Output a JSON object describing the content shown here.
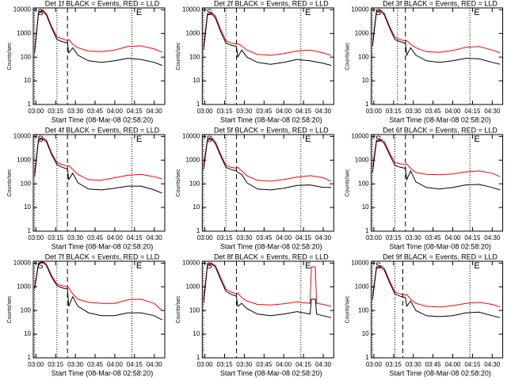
{
  "chart_data": [
    {
      "type": "line",
      "title": "Det 1f BLACK = Events, RED = LLD",
      "xlabel": "Start Time (08-Mar-08 02:58:20)",
      "ylabel": "Counts/sec",
      "log_y": true,
      "xlim": [
        "02:58",
        "04:38"
      ],
      "xticks": [
        "03:00",
        "03:15",
        "03:30",
        "03:45",
        "04:00",
        "04:15",
        "04:30"
      ],
      "ylim": [
        1,
        12000
      ],
      "yticks": [
        1,
        10,
        100,
        1000,
        10000
      ],
      "dotted_lines": [
        "02:59",
        "03:16",
        "04:13"
      ],
      "dashed_lines": [
        "03:24"
      ],
      "annotations": [
        {
          "text": "S",
          "x": "03:00"
        },
        {
          "text": "E",
          "x": "04:15"
        }
      ],
      "x": [
        "02:59",
        "03:02",
        "03:05",
        "03:08",
        "03:12",
        "03:16",
        "03:20",
        "03:24",
        "03:25",
        "03:28",
        "03:32",
        "03:40",
        "03:50",
        "04:00",
        "04:10",
        "04:20",
        "04:30",
        "04:36"
      ],
      "series": [
        {
          "color": "#ff0000",
          "values": [
            200,
            8000,
            10000,
            7000,
            2000,
            700,
            600,
            500,
            550,
            350,
            250,
            180,
            170,
            200,
            280,
            300,
            220,
            160
          ]
        },
        {
          "color": "#000000",
          "values": [
            150,
            7000,
            9000,
            6000,
            1700,
            550,
            450,
            400,
            150,
            250,
            120,
            70,
            60,
            70,
            90,
            80,
            60,
            45
          ]
        }
      ]
    },
    {
      "type": "line",
      "title": "Det 2f BLACK = Events, RED = LLD",
      "xlabel": "Start Time (08-Mar-08 02:58:20)",
      "ylabel": "Counts/sec",
      "log_y": true,
      "xlim": [
        "02:58",
        "04:38"
      ],
      "xticks": [
        "03:00",
        "03:15",
        "03:30",
        "03:45",
        "04:00",
        "04:15",
        "04:30"
      ],
      "ylim": [
        1,
        12000
      ],
      "yticks": [
        1,
        10,
        100,
        1000,
        10000
      ],
      "dotted_lines": [
        "02:59",
        "03:16",
        "04:13"
      ],
      "dashed_lines": [
        "03:24"
      ],
      "annotations": [
        {
          "text": "S",
          "x": "03:00"
        },
        {
          "text": "E",
          "x": "04:15"
        }
      ],
      "x": [
        "02:59",
        "03:02",
        "03:05",
        "03:08",
        "03:12",
        "03:16",
        "03:20",
        "03:24",
        "03:25",
        "03:28",
        "03:32",
        "03:40",
        "03:50",
        "04:00",
        "04:10",
        "04:20",
        "04:30",
        "04:36"
      ],
      "series": [
        {
          "color": "#ff0000",
          "values": [
            300,
            7000,
            8000,
            5500,
            1500,
            500,
            400,
            350,
            380,
            300,
            200,
            130,
            120,
            140,
            180,
            200,
            150,
            120
          ]
        },
        {
          "color": "#000000",
          "values": [
            200,
            6000,
            7000,
            4500,
            1200,
            400,
            320,
            280,
            100,
            200,
            100,
            60,
            50,
            60,
            80,
            70,
            55,
            45
          ]
        }
      ]
    },
    {
      "type": "line",
      "title": "Det 3f BLACK = Events, RED = LLD",
      "xlabel": "Start Time (08-Mar-08 02:58:20)",
      "ylabel": "Counts/sec",
      "log_y": true,
      "xlim": [
        "02:58",
        "04:38"
      ],
      "xticks": [
        "03:00",
        "03:15",
        "03:30",
        "03:45",
        "04:00",
        "04:15",
        "04:30"
      ],
      "ylim": [
        1,
        12000
      ],
      "yticks": [
        1,
        10,
        100,
        1000,
        10000
      ],
      "dotted_lines": [
        "02:59",
        "03:18",
        "04:13"
      ],
      "dashed_lines": [
        "03:24"
      ],
      "annotations": [
        {
          "text": "S",
          "x": "03:00"
        },
        {
          "text": "E",
          "x": "04:15"
        }
      ],
      "x": [
        "02:59",
        "03:02",
        "03:05",
        "03:08",
        "03:12",
        "03:16",
        "03:20",
        "03:24",
        "03:25",
        "03:28",
        "03:32",
        "03:40",
        "03:50",
        "04:00",
        "04:10",
        "04:20",
        "04:30",
        "04:36"
      ],
      "series": [
        {
          "color": "#ff0000",
          "values": [
            400,
            9000,
            10000,
            7000,
            2000,
            700,
            550,
            480,
            500,
            350,
            250,
            170,
            160,
            190,
            260,
            280,
            200,
            150
          ]
        },
        {
          "color": "#000000",
          "values": [
            300,
            8000,
            9000,
            6000,
            1700,
            550,
            450,
            380,
            120,
            250,
            120,
            70,
            60,
            70,
            90,
            85,
            60,
            50
          ]
        }
      ]
    },
    {
      "type": "line",
      "title": "Det 4f BLACK = Events, RED = LLD",
      "xlabel": "Start Time (08-Mar-08 02:58:20)",
      "ylabel": "Counts/sec",
      "log_y": true,
      "xlim": [
        "02:58",
        "04:38"
      ],
      "xticks": [
        "03:00",
        "03:15",
        "03:30",
        "03:45",
        "04:00",
        "04:15",
        "04:30"
      ],
      "ylim": [
        1,
        12000
      ],
      "yticks": [
        1,
        10,
        100,
        1000,
        10000
      ],
      "dotted_lines": [
        "02:59",
        "03:16",
        "04:13"
      ],
      "dashed_lines": [
        "03:24"
      ],
      "annotations": [
        {
          "text": "S",
          "x": "03:00"
        },
        {
          "text": "E",
          "x": "04:15"
        }
      ],
      "x": [
        "02:59",
        "03:02",
        "03:05",
        "03:08",
        "03:12",
        "03:16",
        "03:20",
        "03:24",
        "03:25",
        "03:28",
        "03:32",
        "03:40",
        "03:50",
        "04:00",
        "04:10",
        "04:20",
        "04:30",
        "04:36"
      ],
      "series": [
        {
          "color": "#ff0000",
          "values": [
            300,
            8000,
            9000,
            7000,
            2000,
            800,
            650,
            550,
            600,
            400,
            250,
            150,
            140,
            180,
            230,
            250,
            200,
            160
          ]
        },
        {
          "color": "#000000",
          "values": [
            200,
            7000,
            8000,
            6000,
            1700,
            650,
            500,
            420,
            150,
            280,
            110,
            60,
            55,
            65,
            80,
            80,
            55,
            40
          ]
        }
      ]
    },
    {
      "type": "line",
      "title": "Det 5f BLACK = Events, RED = LLD",
      "xlabel": "Start Time (08-Mar-08 02:58:20)",
      "ylabel": "Counts/sec",
      "log_y": true,
      "xlim": [
        "02:58",
        "04:38"
      ],
      "xticks": [
        "03:00",
        "03:15",
        "03:30",
        "03:45",
        "04:00",
        "04:15",
        "04:30"
      ],
      "ylim": [
        1,
        12000
      ],
      "yticks": [
        1,
        10,
        100,
        1000,
        10000
      ],
      "dotted_lines": [
        "02:59",
        "03:16",
        "04:13"
      ],
      "dashed_lines": [
        "03:24"
      ],
      "annotations": [
        {
          "text": "S",
          "x": "03:00"
        },
        {
          "text": "E",
          "x": "04:15"
        }
      ],
      "x": [
        "02:59",
        "03:02",
        "03:05",
        "03:08",
        "03:12",
        "03:16",
        "03:20",
        "03:24",
        "03:25",
        "03:28",
        "03:32",
        "03:40",
        "03:50",
        "04:00",
        "04:10",
        "04:20",
        "04:30",
        "04:36"
      ],
      "series": [
        {
          "color": "#ff0000",
          "values": [
            600,
            8000,
            9000,
            6000,
            1800,
            600,
            500,
            450,
            500,
            350,
            220,
            140,
            130,
            150,
            190,
            220,
            180,
            130
          ]
        },
        {
          "color": "#000000",
          "values": [
            400,
            7000,
            8000,
            5000,
            1500,
            500,
            400,
            350,
            300,
            250,
            110,
            60,
            55,
            65,
            85,
            90,
            70,
            70
          ]
        }
      ]
    },
    {
      "type": "line",
      "title": "Det 6f BLACK = Events, RED = LLD",
      "xlabel": "Start Time (08-Mar-08 02:58:20)",
      "ylabel": "Counts/sec",
      "log_y": true,
      "xlim": [
        "02:58",
        "04:38"
      ],
      "xticks": [
        "03:00",
        "03:15",
        "03:30",
        "03:45",
        "04:00",
        "04:15",
        "04:30"
      ],
      "ylim": [
        1,
        12000
      ],
      "yticks": [
        1,
        10,
        100,
        1000,
        10000
      ],
      "dotted_lines": [
        "02:59",
        "03:16",
        "04:13"
      ],
      "dashed_lines": [
        "03:24"
      ],
      "annotations": [
        {
          "text": "S",
          "x": "03:00"
        },
        {
          "text": "E",
          "x": "04:15"
        }
      ],
      "x": [
        "02:59",
        "03:02",
        "03:05",
        "03:08",
        "03:12",
        "03:16",
        "03:20",
        "03:24",
        "03:25",
        "03:28",
        "03:32",
        "03:40",
        "03:50",
        "04:00",
        "04:10",
        "04:20",
        "04:30",
        "04:36"
      ],
      "series": [
        {
          "color": "#ff0000",
          "values": [
            500,
            7000,
            8000,
            6000,
            2000,
            800,
            700,
            650,
            700,
            450,
            300,
            250,
            240,
            260,
            320,
            350,
            280,
            200
          ]
        },
        {
          "color": "#000000",
          "values": [
            300,
            6000,
            7000,
            5000,
            1700,
            600,
            500,
            450,
            150,
            350,
            120,
            70,
            60,
            70,
            90,
            95,
            70,
            55
          ]
        }
      ]
    },
    {
      "type": "line",
      "title": "Det 7f BLACK = Events, RED = LLD",
      "xlabel": "Start Time (08-Mar-08 02:58:20)",
      "ylabel": "Counts/sec",
      "log_y": true,
      "xlim": [
        "02:58",
        "04:38"
      ],
      "xticks": [
        "03:00",
        "03:15",
        "03:30",
        "03:45",
        "04:00",
        "04:15",
        "04:30"
      ],
      "ylim": [
        1,
        12000
      ],
      "yticks": [
        1,
        10,
        100,
        1000,
        10000
      ],
      "dotted_lines": [
        "02:59",
        "03:16",
        "04:13"
      ],
      "dashed_lines": [
        "03:24"
      ],
      "annotations": [
        {
          "text": "S",
          "x": "03:00"
        },
        {
          "text": "E",
          "x": "04:15"
        }
      ],
      "x": [
        "02:59",
        "03:02",
        "03:05",
        "03:08",
        "03:12",
        "03:16",
        "03:20",
        "03:24",
        "03:25",
        "03:28",
        "03:32",
        "03:40",
        "03:50",
        "04:00",
        "04:10",
        "04:20",
        "04:30",
        "04:36"
      ],
      "series": [
        {
          "color": "#ff0000",
          "values": [
            1000,
            10000,
            12000,
            9000,
            3000,
            1300,
            1100,
            1000,
            900,
            500,
            300,
            220,
            200,
            200,
            280,
            300,
            200,
            100
          ]
        },
        {
          "color": "#000000",
          "values": [
            800,
            9000,
            11000,
            8000,
            2500,
            1100,
            900,
            800,
            150,
            380,
            150,
            80,
            60,
            60,
            80,
            80,
            60,
            40
          ]
        }
      ]
    },
    {
      "type": "line",
      "title": "Det 8f BLACK = Events, RED = LLD",
      "xlabel": "Start Time (08-Mar-08 02:58:20)",
      "ylabel": "Counts/sec",
      "log_y": true,
      "xlim": [
        "02:58",
        "04:38"
      ],
      "xticks": [
        "03:00",
        "03:15",
        "03:30",
        "03:45",
        "04:00",
        "04:15",
        "04:30"
      ],
      "ylim": [
        1,
        12000
      ],
      "yticks": [
        1,
        10,
        100,
        1000,
        10000
      ],
      "dotted_lines": [
        "02:59",
        "04:13"
      ],
      "dashed_lines": [
        "03:24"
      ],
      "annotations": [
        {
          "text": "S",
          "x": "03:00"
        },
        {
          "text": "E",
          "x": "04:15"
        }
      ],
      "x": [
        "02:59",
        "03:02",
        "03:05",
        "03:08",
        "03:12",
        "03:16",
        "03:20",
        "03:24",
        "03:25",
        "03:28",
        "03:32",
        "03:40",
        "03:50",
        "04:00",
        "04:10",
        "04:20",
        "04:21",
        "04:24",
        "04:25",
        "04:30",
        "04:36"
      ],
      "series": [
        {
          "color": "#ff0000",
          "values": [
            300,
            9000,
            10000,
            8000,
            2500,
            800,
            600,
            500,
            550,
            350,
            250,
            180,
            170,
            190,
            230,
            200,
            7000,
            7000,
            200,
            180,
            150
          ]
        },
        {
          "color": "#000000",
          "values": [
            200,
            8000,
            9000,
            7000,
            2000,
            650,
            480,
            400,
            150,
            200,
            120,
            70,
            60,
            70,
            90,
            70,
            300,
            300,
            70,
            60,
            50
          ]
        }
      ]
    },
    {
      "type": "line",
      "title": "Det 9f BLACK = Events, RED = LLD",
      "xlabel": "Start Time (08-Mar-08 02:58:20)",
      "ylabel": "Counts/sec",
      "log_y": true,
      "xlim": [
        "02:58",
        "04:38"
      ],
      "xticks": [
        "03:00",
        "03:15",
        "03:30",
        "03:45",
        "04:00",
        "04:15",
        "04:30"
      ],
      "ylim": [
        1,
        12000
      ],
      "yticks": [
        1,
        10,
        100,
        1000,
        10000
      ],
      "dotted_lines": [
        "02:59",
        "03:16",
        "04:13"
      ],
      "dashed_lines": [
        "03:22"
      ],
      "annotations": [
        {
          "text": "S",
          "x": "03:00"
        },
        {
          "text": "E",
          "x": "04:15"
        }
      ],
      "x": [
        "02:59",
        "03:02",
        "03:05",
        "03:08",
        "03:12",
        "03:16",
        "03:20",
        "03:24",
        "03:25",
        "03:28",
        "03:32",
        "03:40",
        "03:50",
        "04:00",
        "04:10",
        "04:20",
        "04:30",
        "04:36"
      ],
      "series": [
        {
          "color": "#ff0000",
          "values": [
            400,
            7000,
            8000,
            6000,
            1800,
            600,
            500,
            450,
            480,
            300,
            200,
            150,
            140,
            160,
            200,
            220,
            180,
            140
          ]
        },
        {
          "color": "#000000",
          "values": [
            300,
            6000,
            7000,
            5000,
            1500,
            500,
            400,
            350,
            150,
            250,
            100,
            60,
            55,
            60,
            80,
            85,
            60,
            50
          ]
        }
      ]
    }
  ]
}
